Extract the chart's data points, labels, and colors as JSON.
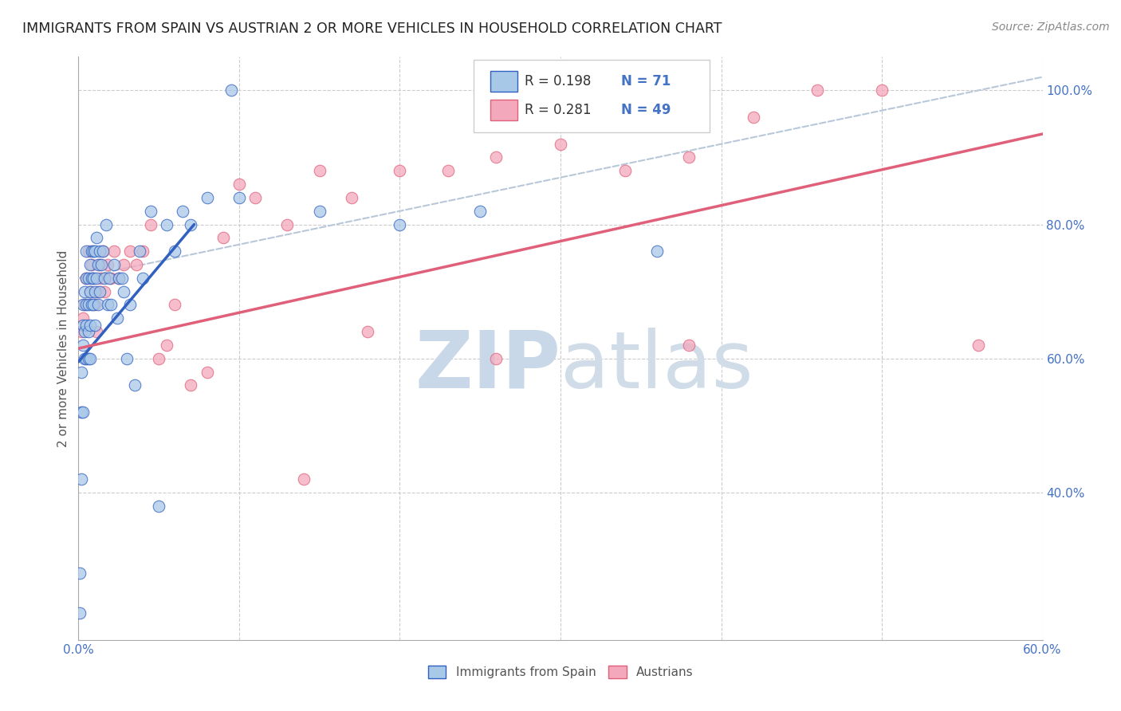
{
  "title": "IMMIGRANTS FROM SPAIN VS AUSTRIAN 2 OR MORE VEHICLES IN HOUSEHOLD CORRELATION CHART",
  "source": "Source: ZipAtlas.com",
  "ylabel": "2 or more Vehicles in Household",
  "color_spain": "#a8c8e8",
  "color_austria": "#f4a8bc",
  "color_line_spain": "#3060c0",
  "color_line_austria": "#e0607a",
  "color_diagonal": "#b8c8d8",
  "xlim": [
    0.0,
    0.6
  ],
  "ylim": [
    0.18,
    1.05
  ],
  "spain_x": [
    0.001,
    0.001,
    0.002,
    0.002,
    0.002,
    0.003,
    0.003,
    0.003,
    0.003,
    0.004,
    0.004,
    0.004,
    0.005,
    0.005,
    0.005,
    0.005,
    0.005,
    0.006,
    0.006,
    0.006,
    0.006,
    0.007,
    0.007,
    0.007,
    0.007,
    0.008,
    0.008,
    0.008,
    0.009,
    0.009,
    0.009,
    0.01,
    0.01,
    0.01,
    0.011,
    0.011,
    0.012,
    0.012,
    0.013,
    0.013,
    0.014,
    0.015,
    0.016,
    0.017,
    0.018,
    0.019,
    0.02,
    0.022,
    0.024,
    0.025,
    0.027,
    0.028,
    0.03,
    0.032,
    0.035,
    0.038,
    0.04,
    0.045,
    0.05,
    0.055,
    0.06,
    0.065,
    0.07,
    0.08,
    0.095,
    0.1,
    0.15,
    0.2,
    0.25,
    0.31,
    0.36
  ],
  "spain_y": [
    0.22,
    0.28,
    0.42,
    0.52,
    0.58,
    0.52,
    0.62,
    0.65,
    0.68,
    0.6,
    0.64,
    0.7,
    0.6,
    0.65,
    0.68,
    0.72,
    0.76,
    0.6,
    0.64,
    0.68,
    0.72,
    0.6,
    0.65,
    0.7,
    0.74,
    0.68,
    0.72,
    0.76,
    0.68,
    0.72,
    0.76,
    0.65,
    0.7,
    0.76,
    0.72,
    0.78,
    0.68,
    0.74,
    0.7,
    0.76,
    0.74,
    0.76,
    0.72,
    0.8,
    0.68,
    0.72,
    0.68,
    0.74,
    0.66,
    0.72,
    0.72,
    0.7,
    0.6,
    0.68,
    0.56,
    0.76,
    0.72,
    0.82,
    0.38,
    0.8,
    0.76,
    0.82,
    0.8,
    0.84,
    1.0,
    0.84,
    0.82,
    0.8,
    0.82,
    0.98,
    0.76
  ],
  "austria_x": [
    0.002,
    0.003,
    0.004,
    0.005,
    0.006,
    0.007,
    0.008,
    0.009,
    0.01,
    0.011,
    0.012,
    0.013,
    0.014,
    0.015,
    0.016,
    0.018,
    0.02,
    0.022,
    0.025,
    0.028,
    0.032,
    0.036,
    0.04,
    0.045,
    0.05,
    0.055,
    0.06,
    0.07,
    0.08,
    0.09,
    0.1,
    0.11,
    0.13,
    0.15,
    0.17,
    0.2,
    0.23,
    0.26,
    0.3,
    0.34,
    0.38,
    0.42,
    0.46,
    0.5,
    0.38,
    0.26,
    0.18,
    0.14,
    0.56
  ],
  "austria_y": [
    0.64,
    0.66,
    0.68,
    0.72,
    0.76,
    0.7,
    0.74,
    0.72,
    0.68,
    0.64,
    0.7,
    0.74,
    0.72,
    0.76,
    0.7,
    0.74,
    0.72,
    0.76,
    0.72,
    0.74,
    0.76,
    0.74,
    0.76,
    0.8,
    0.6,
    0.62,
    0.68,
    0.56,
    0.58,
    0.78,
    0.86,
    0.84,
    0.8,
    0.88,
    0.84,
    0.88,
    0.88,
    0.9,
    0.92,
    0.88,
    0.9,
    0.96,
    1.0,
    1.0,
    0.62,
    0.6,
    0.64,
    0.42,
    0.62
  ],
  "spain_line_x": [
    0.0,
    0.072
  ],
  "spain_line_y": [
    0.595,
    0.8
  ],
  "austria_line_x": [
    0.0,
    0.6
  ],
  "austria_line_y": [
    0.615,
    0.935
  ],
  "diag_line_x": [
    0.0,
    0.6
  ],
  "diag_line_y": [
    0.72,
    1.02
  ],
  "watermark_zip": "ZIP",
  "watermark_atlas": "atlas",
  "watermark_color_zip": "#c8d8e8",
  "watermark_color_atlas": "#d0dce8",
  "background_color": "#ffffff"
}
